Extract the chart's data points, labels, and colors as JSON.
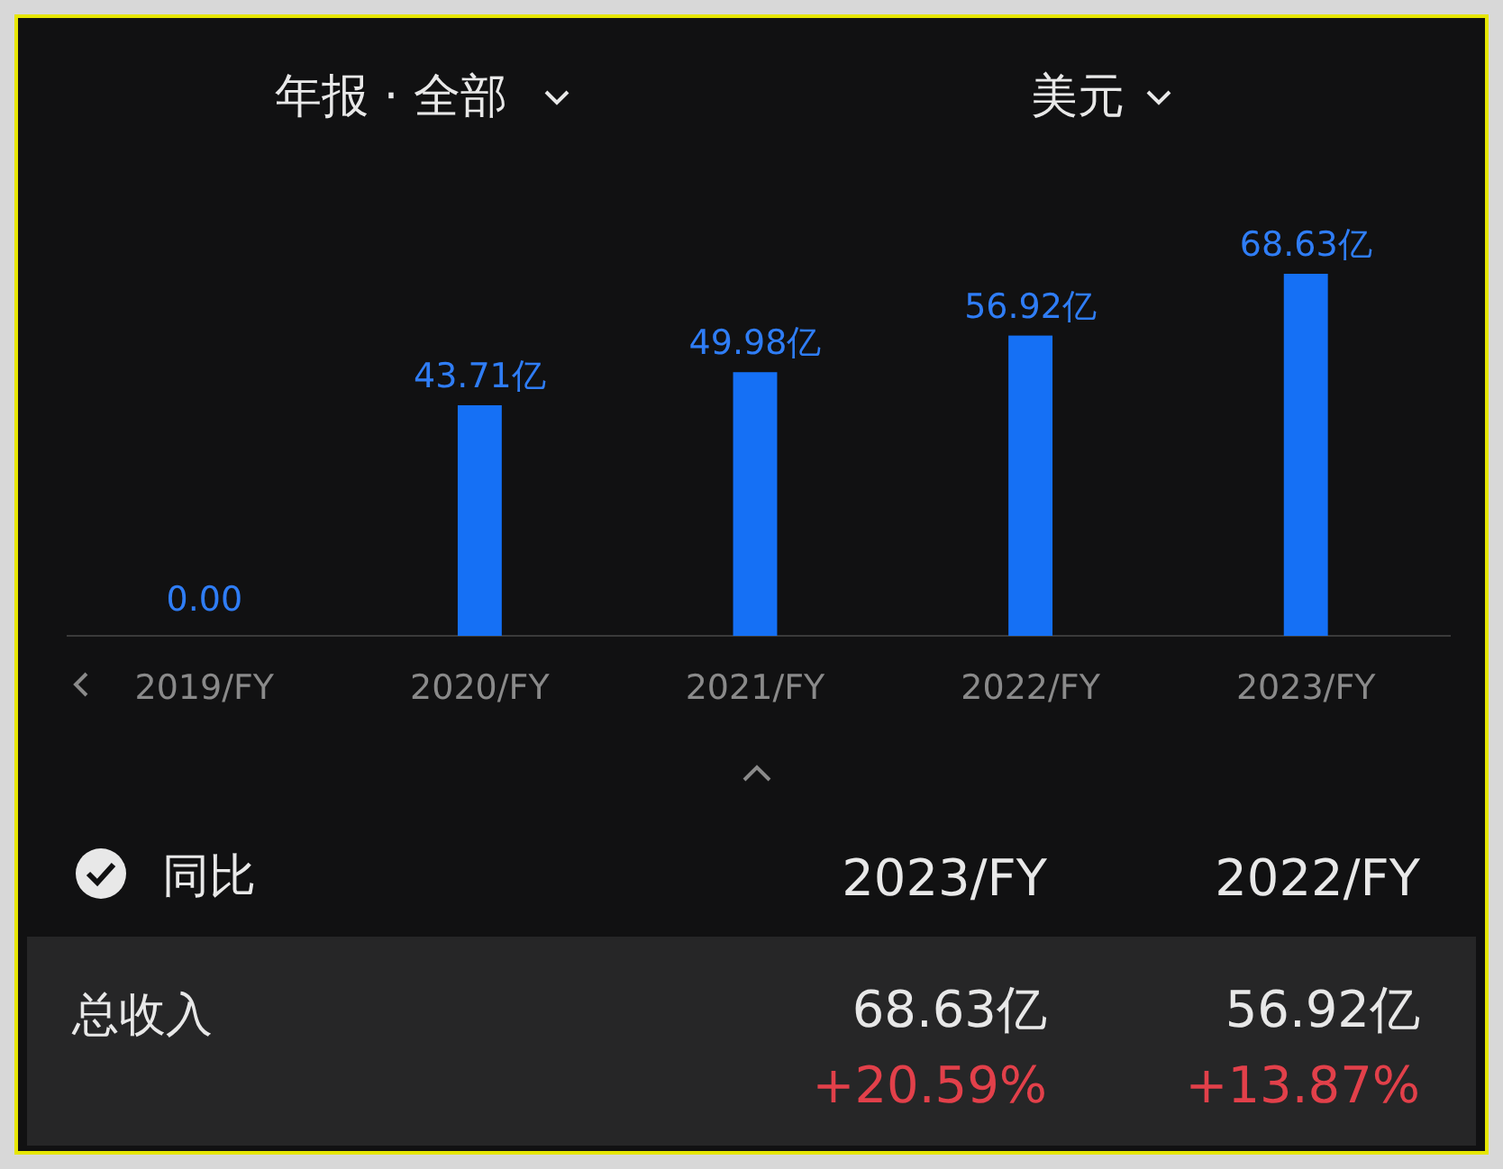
{
  "chart_data": {
    "type": "bar",
    "categories": [
      "2019/FY",
      "2020/FY",
      "2021/FY",
      "2022/FY",
      "2023/FY"
    ],
    "values": [
      0,
      43.71,
      49.98,
      56.92,
      68.63
    ],
    "value_labels": [
      "0.00",
      "43.71亿",
      "49.98亿",
      "56.92亿",
      "68.63亿"
    ],
    "color": "#1570f5",
    "annotations": [
      "年报 · 全部",
      "美元",
      "同比",
      "2023/FY",
      "2022/FY",
      "总收入",
      "68.63亿",
      "56.92亿",
      "+20.59%",
      "+13.87%"
    ]
  }
}
